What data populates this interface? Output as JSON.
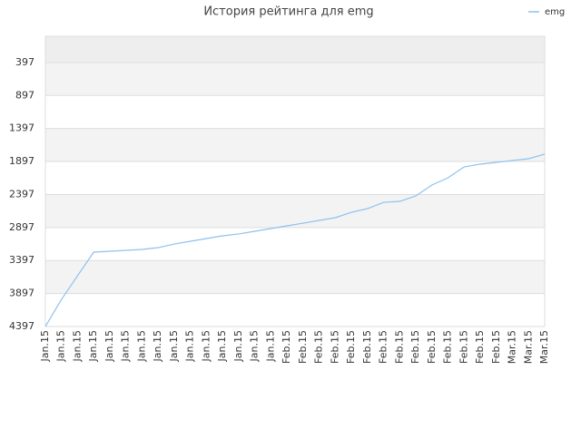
{
  "chart_data": {
    "type": "line",
    "title": "История рейтинга для emg",
    "categories": [
      "Jan.15",
      "Jan.15",
      "Jan.15",
      "Jan.15",
      "Jan.15",
      "Jan.15",
      "Jan.15",
      "Jan.15",
      "Jan.15",
      "Jan.15",
      "Jan.15",
      "Jan.15",
      "Jan.15",
      "Jan.15",
      "Jan.15",
      "Feb.15",
      "Feb.15",
      "Feb.15",
      "Feb.15",
      "Feb.15",
      "Feb.15",
      "Feb.15",
      "Feb.15",
      "Feb.15",
      "Feb.15",
      "Feb.15",
      "Feb.15",
      "Feb.15",
      "Feb.15",
      "Mar.15",
      "Mar.15",
      "Mar.15"
    ],
    "series": [
      {
        "name": "emg",
        "color": "#8ec1ee",
        "values": [
          4397,
          3985,
          3627,
          3270,
          3257,
          3243,
          3229,
          3202,
          3147,
          3105,
          3064,
          3023,
          2995,
          2954,
          2913,
          2872,
          2831,
          2789,
          2748,
          2666,
          2611,
          2515,
          2501,
          2418,
          2253,
          2144,
          1979,
          1937,
          1910,
          1882,
          1855,
          1786
        ]
      }
    ],
    "ylim": [
      4397,
      0
    ],
    "yticks": [
      397,
      897,
      1397,
      1897,
      2397,
      2897,
      3397,
      3897,
      4397
    ],
    "grid": true,
    "legend": "top-right"
  }
}
